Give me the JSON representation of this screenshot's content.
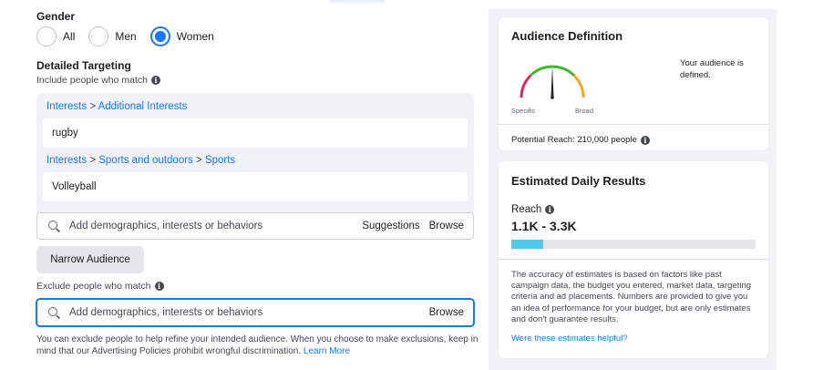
{
  "gender": {
    "label": "Gender",
    "options": [
      "All",
      "Men",
      "Women"
    ],
    "selected": "Women"
  },
  "targeting": {
    "title": "Detailed Targeting",
    "include_label": "Include people who match",
    "groups": [
      {
        "path": [
          "Interests",
          "Additional Interests"
        ],
        "value": "rugby"
      },
      {
        "path": [
          "Interests",
          "Sports and outdoors",
          "Sports"
        ],
        "value": "Volleyball"
      }
    ],
    "separator": ">",
    "search_placeholder": "Add demographics, interests or behaviors",
    "suggestions_label": "Suggestions",
    "browse_label": "Browse",
    "narrow_button": "Narrow Audience",
    "exclude_label": "Exclude people who match",
    "exclude_placeholder": "Add demographics, interests or behaviors",
    "exclude_browse_label": "Browse",
    "help_text": "You can exclude people to help refine your intended audience. When you choose to make exclusions, keep in mind that our Advertising Policies prohibit wrongful discrimination.",
    "learn_more": "Learn More"
  },
  "audience_definition": {
    "title": "Audience Definition",
    "status": "Your audience is defined.",
    "specific_label": "Specific",
    "broad_label": "Broad",
    "potential_reach": "Potential Reach: 210,000 people"
  },
  "daily_results": {
    "title": "Estimated Daily Results",
    "reach_label": "Reach",
    "reach_value": "1.1K - 3.3K",
    "reach_fill_fraction": 0.13,
    "disclaimer": "The accuracy of estimates is based on factors like past campaign data, the budget you entered, market data, targeting criteria and ad placements. Numbers are provided to give you an idea of performance for your budget, but are only estimates and don't guarantee results.",
    "helpful_link": "Were these estimates helpful?"
  },
  "colors": {
    "accent": "#1877f2",
    "reach_bar": "#54c7ec",
    "gauge_red": "#e0245e",
    "gauge_green": "#42b72a",
    "gauge_orange": "#f5a623"
  }
}
